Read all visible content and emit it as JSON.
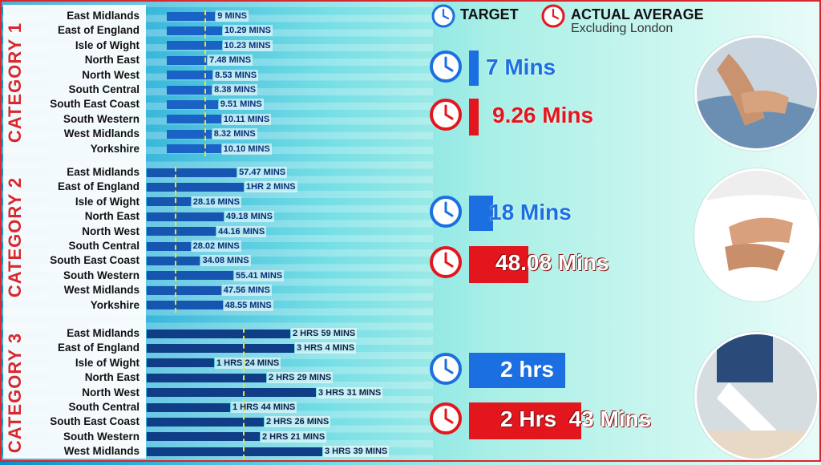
{
  "legend": {
    "target_label": "TARGET",
    "actual_label": "ACTUAL AVERAGE",
    "actual_sub": "Excluding London",
    "target_color": "#1b6fe0",
    "actual_color": "#e3161e"
  },
  "chart_data": [
    {
      "type": "bar",
      "title": "CATEGORY 1",
      "orientation": "horizontal",
      "unit": "minutes",
      "categories": [
        "East Midlands",
        "East of England",
        "Isle of Wight",
        "North East",
        "North West",
        "South Central",
        "South East Coast",
        "South Western",
        "West Midlands",
        "Yorkshire"
      ],
      "values": [
        9,
        10.29,
        10.23,
        7.48,
        8.53,
        8.38,
        9.51,
        10.11,
        8.32,
        10.1
      ],
      "value_labels": [
        "9 MINS",
        "10.29 MINS",
        "10.23 MINS",
        "7.48 MINS",
        "8.53 MINS",
        "8.38 MINS",
        "9.51 MINS",
        "10.11 MINS",
        "8.32 MINS",
        "10.10 MINS"
      ],
      "target": 7,
      "target_text": "7 Mins",
      "actual_average": 9.26,
      "actual_text": "9.26 Mins"
    },
    {
      "type": "bar",
      "title": "CATEGORY 2",
      "orientation": "horizontal",
      "unit": "minutes",
      "categories": [
        "East Midlands",
        "East of England",
        "Isle of Wight",
        "North East",
        "North West",
        "South Central",
        "South East Coast",
        "South Western",
        "West Midlands",
        "Yorkshire"
      ],
      "values": [
        57.47,
        62,
        28.16,
        49.18,
        44.16,
        28.02,
        34.08,
        55.41,
        47.56,
        48.55
      ],
      "value_labels": [
        "57.47 MINS",
        "1HR 2 MINS",
        "28.16 MINS",
        "49.18 MINS",
        "44.16 MINS",
        "28.02 MINS",
        "34.08 MINS",
        "55.41 MINS",
        "47.56 MINS",
        "48.55 MINS"
      ],
      "target": 18,
      "target_text": "18 Mins",
      "actual_average": 48.08,
      "actual_text": "48.08 Mins"
    },
    {
      "type": "bar",
      "title": "CATEGORY 3",
      "orientation": "horizontal",
      "unit": "minutes",
      "categories": [
        "East Midlands",
        "East of England",
        "Isle of Wight",
        "North East",
        "North West",
        "South Central",
        "South East Coast",
        "South Western",
        "West Midlands"
      ],
      "values": [
        179,
        184,
        84,
        149,
        211,
        104,
        146,
        141,
        219
      ],
      "value_labels": [
        "2 HRS 59 MINS",
        "3 HRS 4 MINS",
        "1 HRS 24 MINS",
        "2 HRS 29 MINS",
        "3 HRS 31 MINS",
        "1 HRS 44 MINS",
        "2 HRS 26 MINS",
        "2 HRS 21 MINS",
        "3 HRS 39 MINS"
      ],
      "target": 120,
      "target_text": "2 hrs",
      "actual_average": 163,
      "actual_text": "2 Hrs  43 Mins"
    }
  ]
}
